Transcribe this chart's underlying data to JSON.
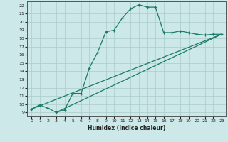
{
  "title": "",
  "xlabel": "Humidex (Indice chaleur)",
  "bg_color": "#cce8e8",
  "line_color": "#1a7a6a",
  "grid_color": "#aacccc",
  "xlim": [
    -0.5,
    23.5
  ],
  "ylim": [
    8.5,
    22.5
  ],
  "xticks": [
    0,
    1,
    2,
    3,
    4,
    5,
    6,
    7,
    8,
    9,
    10,
    11,
    12,
    13,
    14,
    15,
    16,
    17,
    18,
    19,
    20,
    21,
    22,
    23
  ],
  "yticks": [
    9,
    10,
    11,
    12,
    13,
    14,
    15,
    16,
    17,
    18,
    19,
    20,
    21,
    22
  ],
  "line1_x": [
    0,
    1,
    2,
    3,
    4,
    5,
    6,
    7,
    8,
    9,
    10,
    11,
    12,
    13,
    14,
    15,
    16,
    17,
    18,
    19,
    20,
    21,
    22,
    23
  ],
  "line1_y": [
    9.4,
    9.9,
    9.5,
    9.0,
    9.3,
    11.3,
    11.3,
    14.4,
    16.3,
    18.8,
    19.0,
    20.5,
    21.6,
    22.1,
    21.8,
    21.8,
    18.7,
    18.7,
    18.9,
    18.7,
    18.5,
    18.4,
    18.5,
    18.5
  ],
  "line2_x": [
    0,
    23
  ],
  "line2_y": [
    9.4,
    18.5
  ],
  "line3_x": [
    3,
    23
  ],
  "line3_y": [
    9.0,
    18.5
  ]
}
